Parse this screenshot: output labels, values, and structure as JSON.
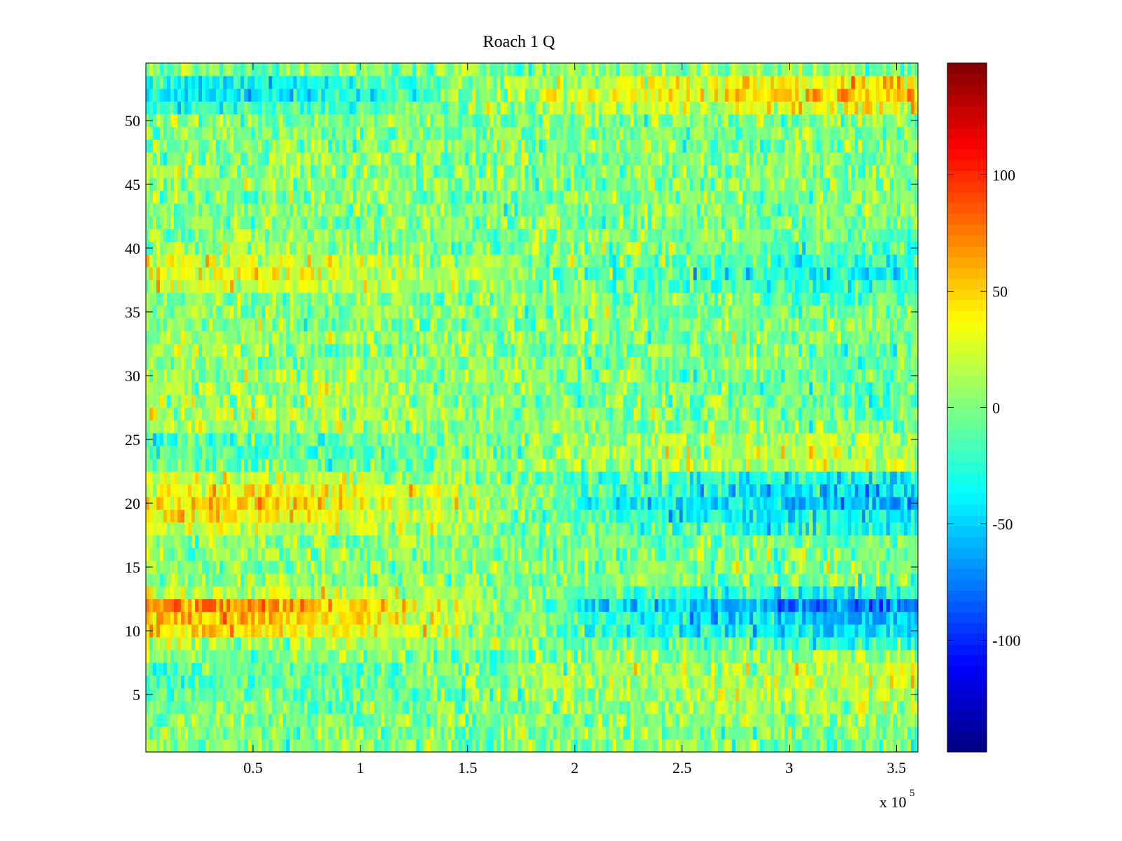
{
  "chart_data": {
    "type": "heatmap",
    "title": "Roach 1 Q",
    "xlabel": "",
    "ylabel": "",
    "x_multiplier": {
      "prefix": "x 10",
      "exponent": "5"
    },
    "xlim": [
      0,
      3.6
    ],
    "ylim": [
      0.5,
      54.5
    ],
    "x_ticks": [
      {
        "value": 0.5,
        "label": "0.5"
      },
      {
        "value": 1,
        "label": "1"
      },
      {
        "value": 1.5,
        "label": "1.5"
      },
      {
        "value": 2,
        "label": "2"
      },
      {
        "value": 2.5,
        "label": "2.5"
      },
      {
        "value": 3,
        "label": "3"
      },
      {
        "value": 3.5,
        "label": "3.5"
      }
    ],
    "y_ticks": [
      {
        "value": 5,
        "label": "5"
      },
      {
        "value": 10,
        "label": "10"
      },
      {
        "value": 15,
        "label": "15"
      },
      {
        "value": 20,
        "label": "20"
      },
      {
        "value": 25,
        "label": "25"
      },
      {
        "value": 30,
        "label": "30"
      },
      {
        "value": 35,
        "label": "35"
      },
      {
        "value": 40,
        "label": "40"
      },
      {
        "value": 45,
        "label": "45"
      },
      {
        "value": 50,
        "label": "50"
      }
    ],
    "colorbar": {
      "colormap": "jet",
      "range": [
        -148,
        148
      ],
      "ticks": [
        {
          "value": 100,
          "label": "100"
        },
        {
          "value": 50,
          "label": "50"
        },
        {
          "value": 0,
          "label": "0"
        },
        {
          "value": -50,
          "label": "-50"
        },
        {
          "value": -100,
          "label": "-100"
        }
      ]
    },
    "rows": 54,
    "time_segments": [
      0,
      0.6,
      1.2,
      1.8,
      2.4,
      3.0,
      3.6
    ],
    "row_trend": [
      [
        0,
        0,
        0,
        0,
        0,
        0
      ],
      [
        0,
        0,
        0,
        0,
        0,
        0
      ],
      [
        0,
        0,
        0,
        0,
        0,
        0
      ],
      [
        -5,
        -5,
        0,
        5,
        10,
        10
      ],
      [
        -10,
        -5,
        0,
        5,
        15,
        20
      ],
      [
        -15,
        -10,
        0,
        10,
        15,
        20
      ],
      [
        -10,
        -5,
        0,
        5,
        15,
        20
      ],
      [
        0,
        0,
        0,
        5,
        10,
        10
      ],
      [
        15,
        10,
        5,
        -10,
        -15,
        -20
      ],
      [
        45,
        35,
        15,
        -20,
        -35,
        -45
      ],
      [
        55,
        45,
        20,
        -25,
        -45,
        -55
      ],
      [
        70,
        55,
        25,
        -35,
        -60,
        -80
      ],
      [
        25,
        20,
        10,
        -10,
        -25,
        -30
      ],
      [
        5,
        5,
        0,
        0,
        0,
        0
      ],
      [
        0,
        0,
        0,
        0,
        0,
        0
      ],
      [
        5,
        5,
        0,
        0,
        0,
        -5
      ],
      [
        10,
        5,
        0,
        0,
        -5,
        -5
      ],
      [
        25,
        20,
        10,
        -10,
        -20,
        -30
      ],
      [
        45,
        35,
        15,
        -20,
        -35,
        -40
      ],
      [
        50,
        40,
        20,
        -25,
        -40,
        -60
      ],
      [
        40,
        35,
        15,
        -20,
        -35,
        -50
      ],
      [
        20,
        15,
        5,
        -15,
        -25,
        -35
      ],
      [
        -10,
        -5,
        0,
        10,
        15,
        20
      ],
      [
        -15,
        -10,
        0,
        10,
        15,
        20
      ],
      [
        -15,
        -10,
        0,
        10,
        15,
        20
      ],
      [
        10,
        10,
        5,
        0,
        0,
        0
      ],
      [
        15,
        10,
        5,
        0,
        0,
        -5
      ],
      [
        10,
        10,
        5,
        0,
        -5,
        -10
      ],
      [
        15,
        10,
        5,
        0,
        -5,
        -10
      ],
      [
        10,
        10,
        5,
        0,
        -5,
        -5
      ],
      [
        5,
        5,
        5,
        0,
        0,
        -5
      ],
      [
        10,
        5,
        5,
        0,
        0,
        -5
      ],
      [
        5,
        5,
        0,
        0,
        0,
        -5
      ],
      [
        0,
        0,
        0,
        0,
        0,
        0
      ],
      [
        5,
        5,
        0,
        0,
        -5,
        -5
      ],
      [
        5,
        5,
        0,
        0,
        -5,
        -10
      ],
      [
        25,
        20,
        10,
        -5,
        -15,
        -25
      ],
      [
        35,
        25,
        10,
        -10,
        -25,
        -35
      ],
      [
        25,
        20,
        10,
        -5,
        -15,
        -25
      ],
      [
        10,
        5,
        0,
        0,
        -5,
        -10
      ],
      [
        5,
        5,
        0,
        0,
        0,
        -5
      ],
      [
        0,
        0,
        0,
        0,
        0,
        0
      ],
      [
        5,
        5,
        0,
        0,
        0,
        0
      ],
      [
        5,
        5,
        0,
        0,
        0,
        0
      ],
      [
        0,
        0,
        0,
        0,
        0,
        0
      ],
      [
        10,
        5,
        0,
        0,
        0,
        0
      ],
      [
        5,
        5,
        0,
        0,
        0,
        0
      ],
      [
        5,
        5,
        0,
        0,
        0,
        0
      ],
      [
        0,
        0,
        0,
        0,
        0,
        0
      ],
      [
        0,
        0,
        0,
        0,
        0,
        0
      ],
      [
        -25,
        -15,
        0,
        15,
        25,
        35
      ],
      [
        -45,
        -30,
        0,
        25,
        45,
        60
      ],
      [
        -40,
        -25,
        0,
        20,
        35,
        45
      ],
      [
        0,
        0,
        0,
        5,
        5,
        5
      ]
    ],
    "noise_amplitude": 18
  }
}
